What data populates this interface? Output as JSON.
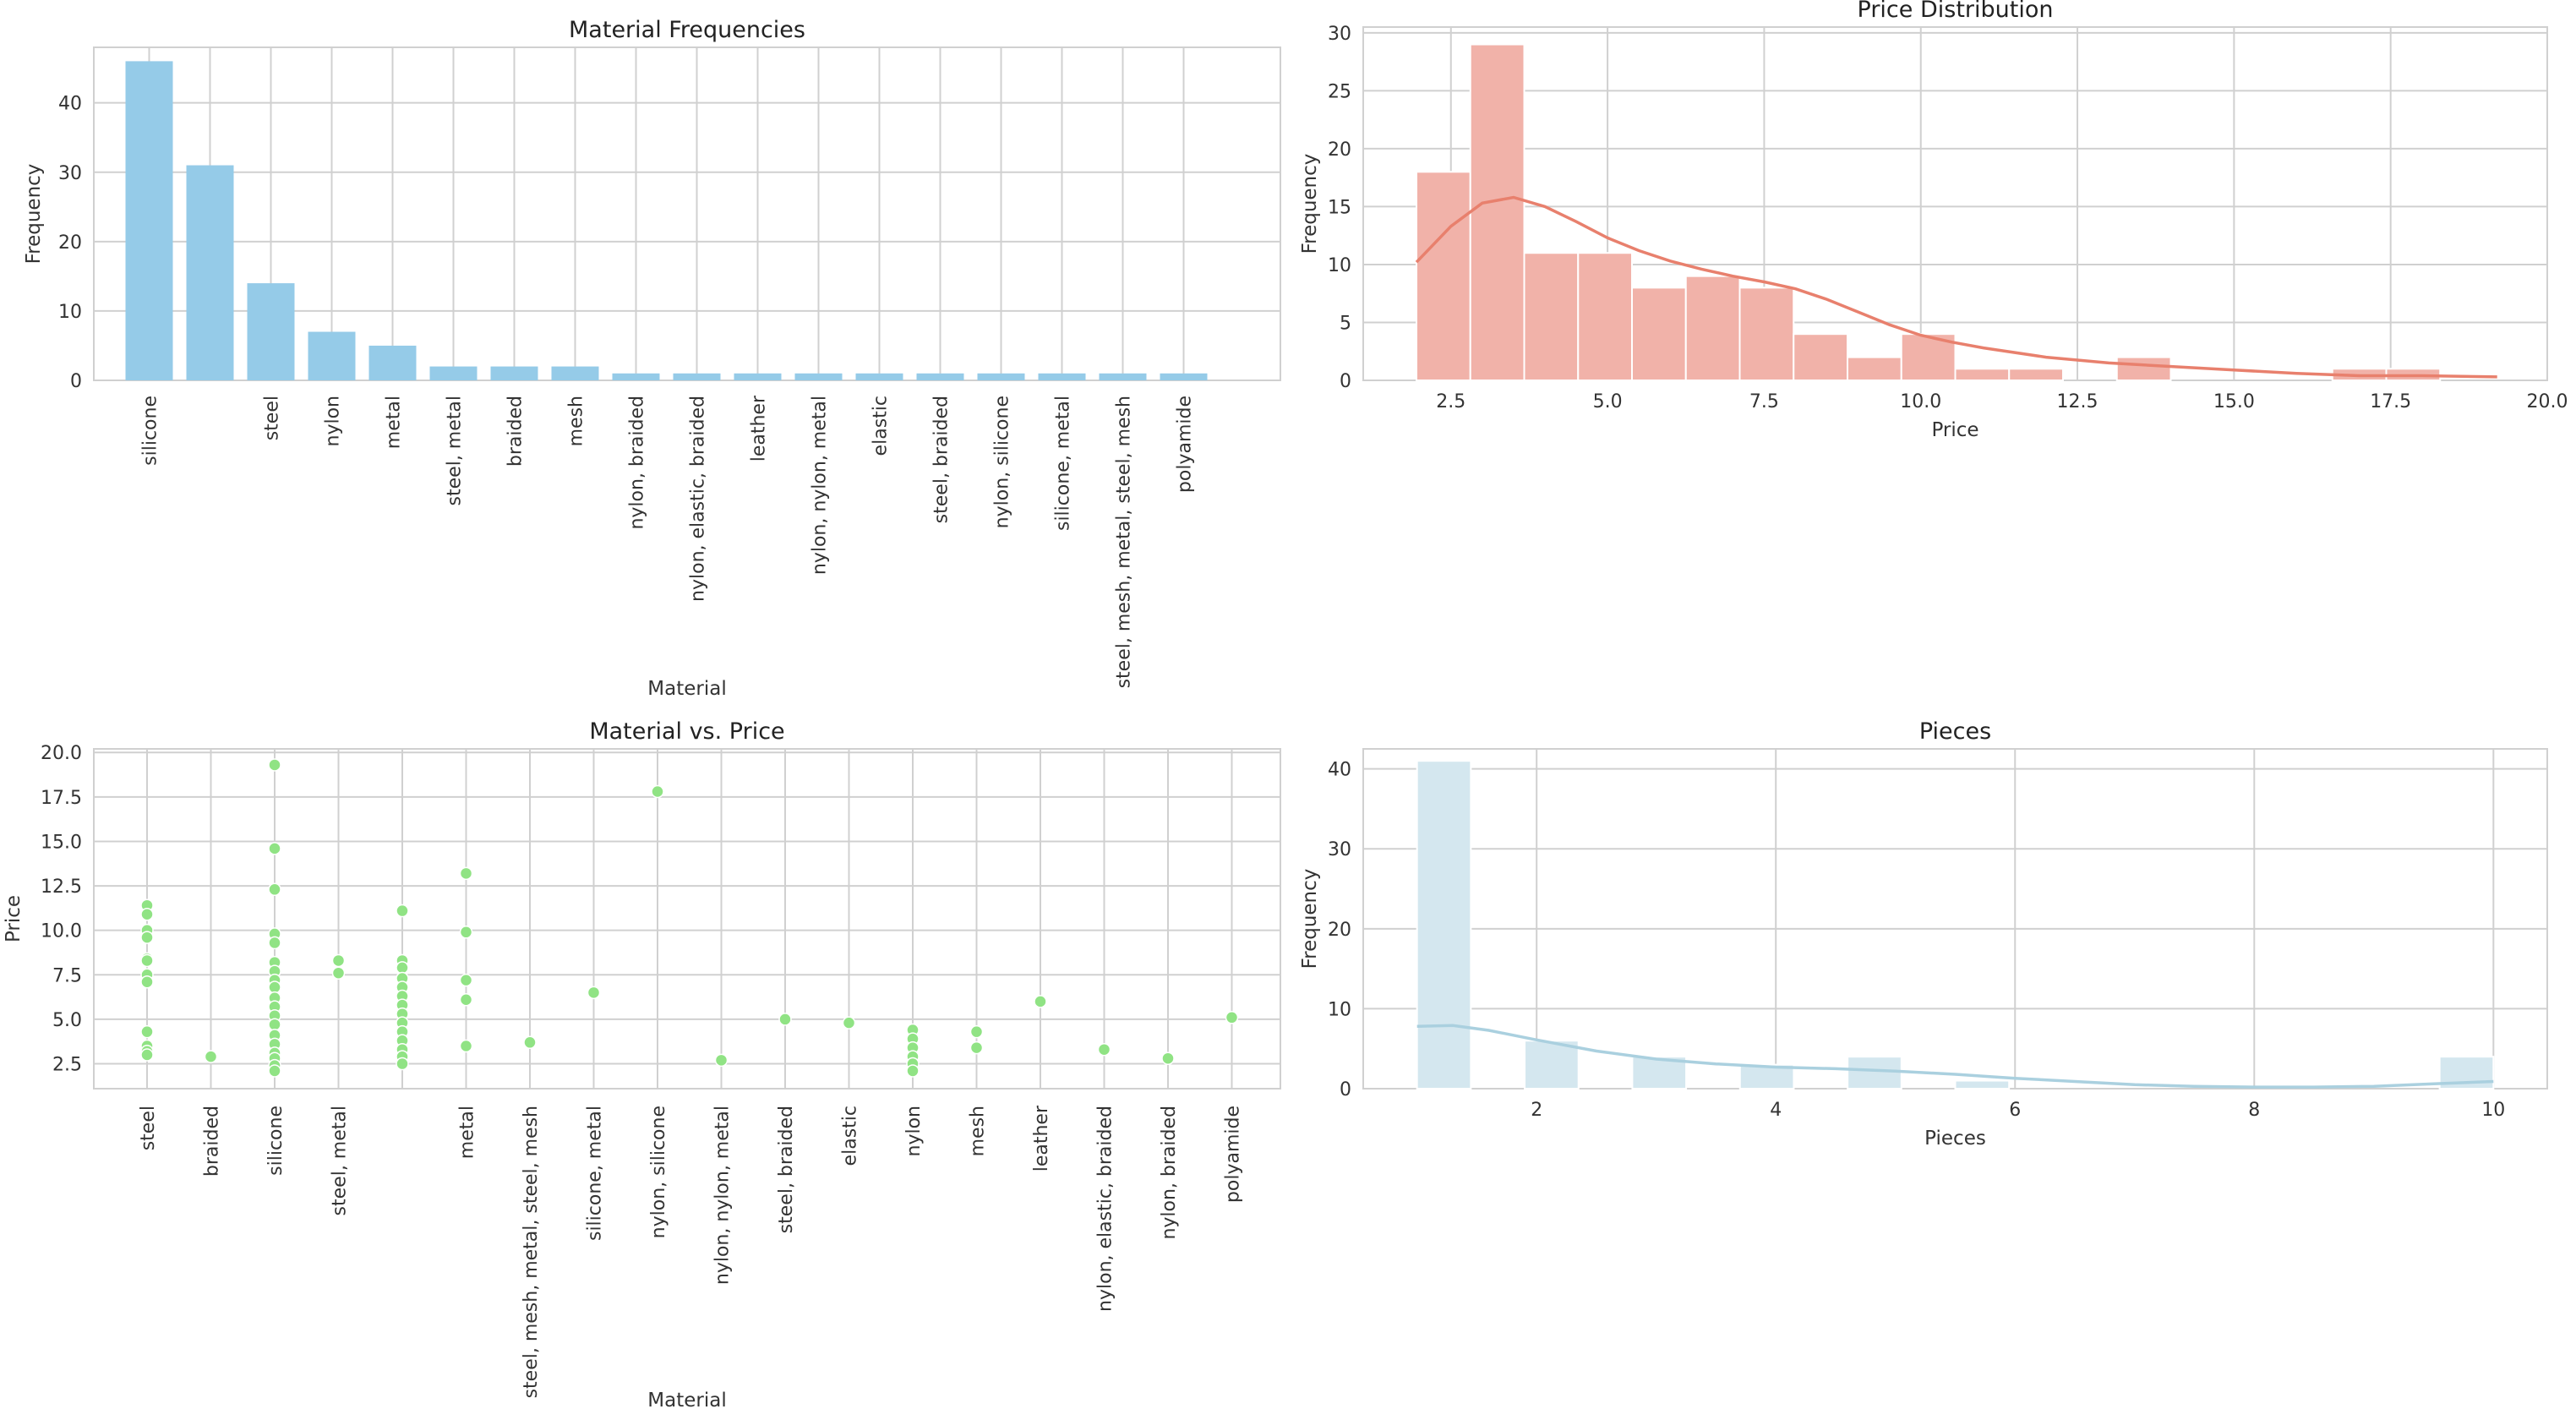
{
  "chart_data": [
    {
      "type": "bar",
      "title": "Material Frequencies",
      "xlabel": "Material",
      "ylabel": "Frequency",
      "color": "#95cbe8",
      "ylim": [
        0,
        48
      ],
      "yticks": [
        0,
        10,
        20,
        30,
        40
      ],
      "categories": [
        "silicone",
        "",
        "steel",
        "nylon",
        "metal",
        "steel, metal",
        "braided",
        "mesh",
        "nylon, braided",
        "nylon, elastic, braided",
        "leather",
        "nylon, nylon, metal",
        "elastic",
        "steel, braided",
        "nylon, silicone",
        "silicone, metal",
        "steel, mesh, metal, steel, mesh",
        "polyamide"
      ],
      "values": [
        46,
        31,
        14,
        7,
        5,
        2,
        2,
        2,
        1,
        1,
        1,
        1,
        1,
        1,
        1,
        1,
        1,
        1
      ]
    },
    {
      "type": "histogram",
      "title": "Price Distribution",
      "xlabel": "Price",
      "ylabel": "Frequency",
      "color": "#f1b2a9",
      "line_color": "#e8806d",
      "xlim": [
        1.1,
        20.0
      ],
      "ylim": [
        0,
        30.5
      ],
      "xticks": [
        "2.5",
        "5.0",
        "7.5",
        "10.0",
        "12.5",
        "15.0",
        "17.5",
        "20.0"
      ],
      "yticks": [
        0,
        5,
        10,
        15,
        20,
        25,
        30
      ],
      "bin_start": 1.95,
      "bin_width": 0.86,
      "counts": [
        18,
        29,
        11,
        11,
        8,
        9,
        8,
        4,
        2,
        4,
        1,
        1,
        0,
        2,
        0,
        0,
        0,
        1,
        1
      ],
      "kde_x": [
        1.95,
        2.5,
        3.0,
        3.5,
        4.0,
        4.5,
        5.0,
        5.5,
        6.0,
        6.5,
        7.0,
        7.5,
        8.0,
        8.5,
        9.0,
        9.5,
        10.0,
        10.5,
        11.0,
        12.0,
        13.0,
        14.0,
        15.0,
        16.0,
        17.0,
        18.0,
        19.2
      ],
      "kde_y": [
        10.2,
        13.3,
        15.3,
        15.8,
        15.0,
        13.7,
        12.3,
        11.2,
        10.3,
        9.6,
        9.0,
        8.5,
        7.9,
        7.0,
        5.9,
        4.8,
        3.9,
        3.3,
        2.8,
        2.0,
        1.5,
        1.2,
        0.9,
        0.6,
        0.4,
        0.4,
        0.3
      ]
    },
    {
      "type": "scatter",
      "title": "Material vs. Price",
      "xlabel": "Material",
      "ylabel": "Price",
      "color": "#90e384",
      "ylim": [
        1.1,
        20.2
      ],
      "yticks": [
        "2.5",
        "5.0",
        "7.5",
        "10.0",
        "12.5",
        "15.0",
        "17.5",
        "20.0"
      ],
      "categories": [
        "steel",
        "braided",
        "silicone",
        "steel, metal",
        "",
        "metal",
        "steel, mesh, metal, steel, mesh",
        "silicone, metal",
        "nylon, silicone",
        "nylon, nylon, metal",
        "steel, braided",
        "elastic",
        "nylon",
        "mesh",
        "leather",
        "nylon, elastic, braided",
        "nylon, braided",
        "polyamide"
      ],
      "points": [
        [
          0,
          11.4
        ],
        [
          0,
          10.9
        ],
        [
          0,
          10.0
        ],
        [
          0,
          9.6
        ],
        [
          0,
          8.4
        ],
        [
          0,
          8.3
        ],
        [
          0,
          7.5
        ],
        [
          0,
          7.1
        ],
        [
          0,
          4.3
        ],
        [
          0,
          3.5
        ],
        [
          0,
          3.2
        ],
        [
          0,
          3.0
        ],
        [
          1,
          2.9
        ],
        [
          2,
          19.3
        ],
        [
          2,
          14.6
        ],
        [
          2,
          12.3
        ],
        [
          2,
          9.8
        ],
        [
          2,
          9.3
        ],
        [
          2,
          8.2
        ],
        [
          2,
          7.7
        ],
        [
          2,
          7.2
        ],
        [
          2,
          6.8
        ],
        [
          2,
          6.2
        ],
        [
          2,
          5.7
        ],
        [
          2,
          5.2
        ],
        [
          2,
          4.7
        ],
        [
          2,
          4.1
        ],
        [
          2,
          3.6
        ],
        [
          2,
          3.1
        ],
        [
          2,
          2.8
        ],
        [
          2,
          2.4
        ],
        [
          2,
          2.1
        ],
        [
          3,
          8.3
        ],
        [
          3,
          7.6
        ],
        [
          4,
          11.1
        ],
        [
          4,
          8.3
        ],
        [
          4,
          7.9
        ],
        [
          4,
          7.3
        ],
        [
          4,
          6.8
        ],
        [
          4,
          6.3
        ],
        [
          4,
          5.8
        ],
        [
          4,
          5.3
        ],
        [
          4,
          4.8
        ],
        [
          4,
          4.3
        ],
        [
          4,
          3.8
        ],
        [
          4,
          3.3
        ],
        [
          4,
          2.9
        ],
        [
          4,
          2.5
        ],
        [
          5,
          13.2
        ],
        [
          5,
          9.9
        ],
        [
          5,
          7.2
        ],
        [
          5,
          6.1
        ],
        [
          5,
          3.5
        ],
        [
          6,
          3.7
        ],
        [
          7,
          6.5
        ],
        [
          8,
          17.8
        ],
        [
          9,
          2.7
        ],
        [
          10,
          5.0
        ],
        [
          11,
          4.8
        ],
        [
          12,
          4.4
        ],
        [
          12,
          3.9
        ],
        [
          12,
          3.4
        ],
        [
          12,
          2.9
        ],
        [
          12,
          2.5
        ],
        [
          12,
          2.1
        ],
        [
          13,
          4.3
        ],
        [
          13,
          3.4
        ],
        [
          14,
          6.0
        ],
        [
          15,
          3.3
        ],
        [
          16,
          2.8
        ],
        [
          17,
          5.1
        ]
      ]
    },
    {
      "type": "histogram",
      "title": "Pieces",
      "xlabel": "Pieces",
      "ylabel": "Frequency",
      "color": "#d4e7ef",
      "line_color": "#aad0df",
      "xlim": [
        0.55,
        10.45
      ],
      "ylim": [
        0,
        42.5
      ],
      "xticks": [
        "2",
        "4",
        "6",
        "8",
        "10"
      ],
      "yticks": [
        0,
        10,
        20,
        30,
        40
      ],
      "bin_start": 1.0,
      "bin_width": 0.45,
      "counts": [
        41,
        0,
        6,
        0,
        4,
        0,
        3,
        0,
        4,
        0,
        1,
        0,
        0,
        0,
        0,
        0,
        0,
        0,
        0,
        4
      ],
      "kde_x": [
        1.0,
        1.3,
        1.6,
        2.0,
        2.5,
        3.0,
        3.5,
        4.0,
        4.5,
        5.0,
        5.5,
        6.0,
        6.5,
        7.0,
        7.5,
        8.0,
        8.5,
        9.0,
        9.5,
        10.0
      ],
      "kde_y": [
        7.8,
        7.9,
        7.3,
        6.1,
        4.7,
        3.7,
        3.1,
        2.7,
        2.5,
        2.2,
        1.8,
        1.3,
        0.9,
        0.5,
        0.3,
        0.2,
        0.2,
        0.3,
        0.6,
        0.9
      ]
    }
  ]
}
